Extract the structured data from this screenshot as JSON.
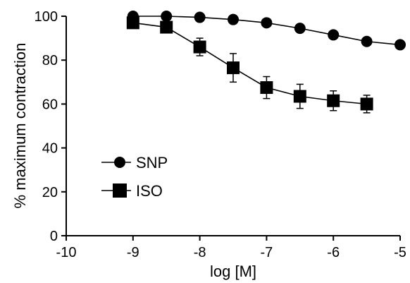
{
  "chart_data": {
    "type": "line",
    "xlabel": "log [M]",
    "ylabel": "% maximum contraction",
    "xlim": [
      -10,
      -5
    ],
    "ylim": [
      0,
      100
    ],
    "xticks": [
      -10,
      -9,
      -8,
      -7,
      -6,
      -5
    ],
    "yticks": [
      0,
      20,
      40,
      60,
      80,
      100
    ],
    "grid": false,
    "legend_position": "lower-left",
    "series": [
      {
        "name": "SNP",
        "marker": "circle",
        "x": [
          -9,
          -8.5,
          -8,
          -7.5,
          -7,
          -6.5,
          -6,
          -5.5,
          -5
        ],
        "y": [
          100,
          100,
          99.5,
          98.5,
          97,
          94.5,
          91.5,
          88.5,
          87
        ],
        "error": [
          0,
          0,
          0,
          0,
          0,
          0,
          0,
          0,
          0
        ]
      },
      {
        "name": "ISO",
        "marker": "square",
        "x": [
          -9,
          -8.5,
          -8,
          -7.5,
          -7,
          -6.5,
          -6,
          -5.5
        ],
        "y": [
          97,
          95,
          86,
          76.5,
          67.5,
          63.5,
          61.5,
          60
        ],
        "error": [
          0,
          0,
          4,
          6.5,
          5,
          5.5,
          4.5,
          4
        ]
      }
    ]
  }
}
